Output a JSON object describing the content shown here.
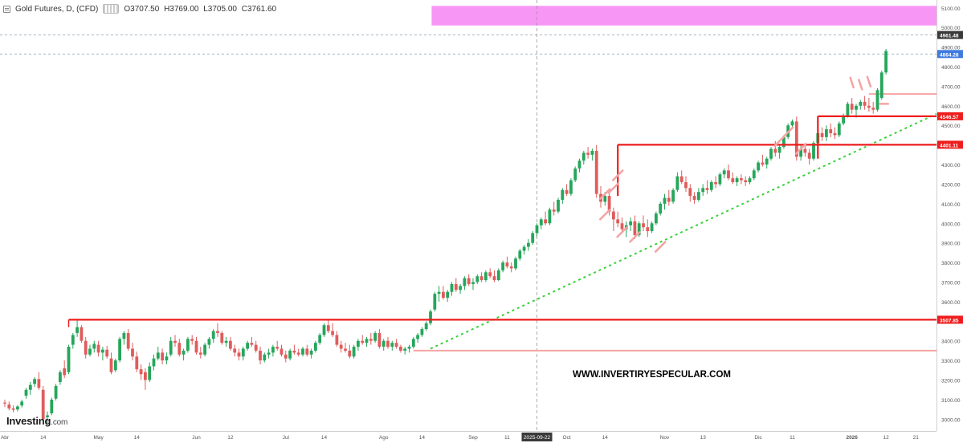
{
  "header": {
    "title": "Gold Futures, D, (CFD)",
    "open": "O3707.50",
    "high": "H3769.00",
    "low": "L3705.00",
    "close": "C3761.60"
  },
  "logo": {
    "main": "Investing",
    "suffix": ".com"
  },
  "watermark": "WWW.INVERTIRYESPECULAR.COM",
  "colors": {
    "up": "#26a65b",
    "down": "#e05c5c",
    "resistance": "#ee1c1c",
    "support_light": "#f7a3a3",
    "trendline": "#3ad13a",
    "zone": "#f896f6",
    "label_red": "#ee1c1c",
    "label_dark": "#3a3a3a",
    "label_blue": "#3f7ae0"
  },
  "chart_data": {
    "type": "candlestick",
    "symbol": "Gold Futures",
    "timeframe": "D",
    "y_tick_labels": [
      "3000.00",
      "3100.00",
      "3200.00",
      "3300.00",
      "3400.00",
      "3500.00",
      "3600.00",
      "3700.00",
      "3800.00",
      "3900.00",
      "4000.00",
      "4100.00",
      "4200.00",
      "4300.00",
      "4400.00",
      "4500.00",
      "4600.00",
      "4700.00",
      "4800.00",
      "4900.00",
      "5000.00",
      "5100.00"
    ],
    "ylim": [
      2940,
      5140
    ],
    "x_tick_labels": [
      {
        "label": "Abr",
        "i": 0
      },
      {
        "label": "14",
        "i": 9
      },
      {
        "label": "May",
        "i": 22
      },
      {
        "label": "14",
        "i": 31
      },
      {
        "label": "Jun",
        "i": 45
      },
      {
        "label": "12",
        "i": 53
      },
      {
        "label": "Jul",
        "i": 66
      },
      {
        "label": "14",
        "i": 75
      },
      {
        "label": "Ago",
        "i": 89
      },
      {
        "label": "14",
        "i": 98
      },
      {
        "label": "Sep",
        "i": 110
      },
      {
        "label": "11",
        "i": 118
      },
      {
        "label": "2025-09-22",
        "i": 125,
        "highlight": true
      },
      {
        "label": "Oct",
        "i": 132
      },
      {
        "label": "14",
        "i": 141
      },
      {
        "label": "Nov",
        "i": 155
      },
      {
        "label": "13",
        "i": 164
      },
      {
        "label": "Dic",
        "i": 177
      },
      {
        "label": "11",
        "i": 185
      },
      {
        "label": "2026",
        "i": 199,
        "bold": true
      },
      {
        "label": "12",
        "i": 207
      },
      {
        "label": "21",
        "i": 214
      }
    ],
    "price_labels": [
      {
        "value": 4961.48,
        "text": "4961.48",
        "style": "dark"
      },
      {
        "value": 4864.28,
        "text": "4864.28",
        "style": "blue"
      },
      {
        "value": 4546.57,
        "text": "4546.57",
        "style": "red"
      },
      {
        "value": 4401.11,
        "text": "4401.11",
        "style": "red"
      },
      {
        "value": 3507.85,
        "text": "3507.85",
        "style": "red"
      }
    ],
    "resistance_lines": [
      {
        "value": 3507.85,
        "from_i": 15,
        "to_i": 220
      },
      {
        "value": 4401.11,
        "from_i": 144,
        "to_i": 220
      },
      {
        "value": 4546.57,
        "from_i": 191,
        "to_i": 220
      }
    ],
    "support_lines": [
      {
        "value": 3350,
        "from_i": 96,
        "to_i": 220
      },
      {
        "value": 4660,
        "from_i": 203,
        "to_i": 220
      }
    ],
    "vertical_segments": [
      {
        "i": 144,
        "from": 4401.11,
        "to": 4140
      },
      {
        "i": 191,
        "from": 4546.57,
        "to": 4330
      }
    ],
    "trendline": {
      "from": {
        "i": 100,
        "v": 3360
      },
      "to": {
        "i": 220,
        "v": 4570
      }
    },
    "zone": {
      "from_i": 98,
      "to_i": 220,
      "low": 5010,
      "high": 5110
    },
    "dashed_levels": [
      4961.48,
      4864.28
    ],
    "arrows": [
      {
        "i": 141,
        "v": 4150,
        "dir": "up"
      },
      {
        "i": 143,
        "v": 4180,
        "dir": "up"
      },
      {
        "i": 144,
        "v": 4245,
        "dir": "up"
      },
      {
        "i": 141,
        "v": 4045,
        "dir": "up"
      },
      {
        "i": 145,
        "v": 3955,
        "dir": "up"
      },
      {
        "i": 148,
        "v": 3930,
        "dir": "up"
      },
      {
        "i": 154,
        "v": 3880,
        "dir": "up"
      },
      {
        "i": 182,
        "v": 4420,
        "dir": "up"
      },
      {
        "i": 184,
        "v": 4465,
        "dir": "up"
      },
      {
        "i": 187,
        "v": 4380,
        "dir": "up"
      },
      {
        "i": 199,
        "v": 4710,
        "dir": "down"
      },
      {
        "i": 201,
        "v": 4700,
        "dir": "down"
      },
      {
        "i": 203,
        "v": 4715,
        "dir": "down"
      },
      {
        "i": 206,
        "v": 4610,
        "dir": "left"
      }
    ],
    "candles": [
      [
        3085,
        3100,
        3062,
        3080
      ],
      [
        3075,
        3090,
        3045,
        3055
      ],
      [
        3055,
        3070,
        3035,
        3048
      ],
      [
        3050,
        3072,
        3040,
        3065
      ],
      [
        3070,
        3100,
        3060,
        3090
      ],
      [
        3120,
        3160,
        3105,
        3150
      ],
      [
        3150,
        3190,
        3125,
        3175
      ],
      [
        3180,
        3215,
        3165,
        3205
      ],
      [
        3205,
        3240,
        3150,
        3160
      ],
      [
        3150,
        3170,
        2990,
        3000
      ],
      [
        3010,
        3040,
        2980,
        3020
      ],
      [
        3030,
        3110,
        3020,
        3100
      ],
      [
        3105,
        3180,
        3095,
        3170
      ],
      [
        3190,
        3250,
        3175,
        3240
      ],
      [
        3260,
        3300,
        3210,
        3225
      ],
      [
        3240,
        3380,
        3230,
        3370
      ],
      [
        3380,
        3440,
        3360,
        3430
      ],
      [
        3440,
        3505,
        3420,
        3470
      ],
      [
        3470,
        3480,
        3390,
        3400
      ],
      [
        3400,
        3420,
        3310,
        3330
      ],
      [
        3330,
        3380,
        3320,
        3360
      ],
      [
        3360,
        3400,
        3340,
        3385
      ],
      [
        3380,
        3400,
        3320,
        3340
      ],
      [
        3340,
        3370,
        3300,
        3355
      ],
      [
        3355,
        3375,
        3310,
        3320
      ],
      [
        3310,
        3340,
        3230,
        3240
      ],
      [
        3250,
        3310,
        3240,
        3300
      ],
      [
        3300,
        3420,
        3290,
        3410
      ],
      [
        3410,
        3450,
        3380,
        3440
      ],
      [
        3440,
        3460,
        3350,
        3360
      ],
      [
        3360,
        3390,
        3300,
        3320
      ],
      [
        3320,
        3345,
        3240,
        3255
      ],
      [
        3255,
        3280,
        3200,
        3230
      ],
      [
        3240,
        3260,
        3150,
        3200
      ],
      [
        3200,
        3290,
        3190,
        3270
      ],
      [
        3270,
        3330,
        3250,
        3310
      ],
      [
        3310,
        3370,
        3300,
        3340
      ],
      [
        3340,
        3360,
        3280,
        3300
      ],
      [
        3300,
        3340,
        3280,
        3320
      ],
      [
        3330,
        3420,
        3320,
        3400
      ],
      [
        3400,
        3430,
        3370,
        3390
      ],
      [
        3390,
        3410,
        3320,
        3330
      ],
      [
        3330,
        3360,
        3300,
        3350
      ],
      [
        3350,
        3420,
        3340,
        3410
      ],
      [
        3410,
        3430,
        3380,
        3400
      ],
      [
        3400,
        3420,
        3330,
        3340
      ],
      [
        3340,
        3370,
        3310,
        3330
      ],
      [
        3330,
        3390,
        3320,
        3380
      ],
      [
        3380,
        3420,
        3360,
        3410
      ],
      [
        3410,
        3460,
        3390,
        3450
      ],
      [
        3450,
        3490,
        3420,
        3440
      ],
      [
        3440,
        3450,
        3380,
        3390
      ],
      [
        3390,
        3420,
        3370,
        3400
      ],
      [
        3400,
        3420,
        3350,
        3360
      ],
      [
        3360,
        3380,
        3320,
        3340
      ],
      [
        3340,
        3360,
        3300,
        3320
      ],
      [
        3320,
        3370,
        3300,
        3360
      ],
      [
        3360,
        3400,
        3350,
        3390
      ],
      [
        3390,
        3420,
        3370,
        3380
      ],
      [
        3380,
        3400,
        3340,
        3350
      ],
      [
        3350,
        3370,
        3280,
        3300
      ],
      [
        3300,
        3340,
        3290,
        3330
      ],
      [
        3330,
        3360,
        3310,
        3340
      ],
      [
        3340,
        3380,
        3320,
        3370
      ],
      [
        3370,
        3400,
        3350,
        3360
      ],
      [
        3360,
        3380,
        3320,
        3330
      ],
      [
        3330,
        3350,
        3290,
        3310
      ],
      [
        3310,
        3360,
        3300,
        3350
      ],
      [
        3350,
        3380,
        3330,
        3340
      ],
      [
        3340,
        3360,
        3320,
        3330
      ],
      [
        3330,
        3370,
        3320,
        3360
      ],
      [
        3360,
        3380,
        3320,
        3330
      ],
      [
        3330,
        3360,
        3310,
        3350
      ],
      [
        3350,
        3400,
        3340,
        3390
      ],
      [
        3390,
        3440,
        3380,
        3430
      ],
      [
        3430,
        3490,
        3420,
        3480
      ],
      [
        3480,
        3510,
        3440,
        3450
      ],
      [
        3450,
        3490,
        3420,
        3430
      ],
      [
        3430,
        3450,
        3370,
        3380
      ],
      [
        3380,
        3400,
        3340,
        3360
      ],
      [
        3360,
        3390,
        3340,
        3350
      ],
      [
        3350,
        3380,
        3310,
        3320
      ],
      [
        3320,
        3380,
        3310,
        3370
      ],
      [
        3370,
        3410,
        3350,
        3400
      ],
      [
        3400,
        3430,
        3380,
        3390
      ],
      [
        3390,
        3420,
        3370,
        3410
      ],
      [
        3410,
        3440,
        3380,
        3400
      ],
      [
        3400,
        3450,
        3390,
        3440
      ],
      [
        3440,
        3460,
        3360,
        3370
      ],
      [
        3370,
        3410,
        3350,
        3400
      ],
      [
        3400,
        3420,
        3360,
        3370
      ],
      [
        3370,
        3400,
        3350,
        3390
      ],
      [
        3390,
        3410,
        3360,
        3370
      ],
      [
        3370,
        3380,
        3340,
        3350
      ],
      [
        3350,
        3370,
        3330,
        3360
      ],
      [
        3360,
        3380,
        3340,
        3370
      ],
      [
        3370,
        3420,
        3360,
        3410
      ],
      [
        3410,
        3440,
        3390,
        3430
      ],
      [
        3430,
        3470,
        3420,
        3460
      ],
      [
        3460,
        3500,
        3450,
        3490
      ],
      [
        3490,
        3560,
        3480,
        3550
      ],
      [
        3560,
        3650,
        3550,
        3640
      ],
      [
        3640,
        3680,
        3600,
        3650
      ],
      [
        3650,
        3680,
        3610,
        3620
      ],
      [
        3620,
        3660,
        3600,
        3650
      ],
      [
        3650,
        3700,
        3630,
        3690
      ],
      [
        3690,
        3720,
        3650,
        3660
      ],
      [
        3660,
        3690,
        3640,
        3680
      ],
      [
        3680,
        3730,
        3660,
        3720
      ],
      [
        3720,
        3740,
        3680,
        3690
      ],
      [
        3690,
        3720,
        3660,
        3700
      ],
      [
        3700,
        3740,
        3690,
        3730
      ],
      [
        3730,
        3750,
        3700,
        3710
      ],
      [
        3710,
        3760,
        3700,
        3750
      ],
      [
        3750,
        3770,
        3720,
        3730
      ],
      [
        3730,
        3760,
        3700,
        3710
      ],
      [
        3710,
        3770,
        3705,
        3760
      ],
      [
        3760,
        3810,
        3750,
        3800
      ],
      [
        3800,
        3830,
        3770,
        3780
      ],
      [
        3780,
        3800,
        3750,
        3770
      ],
      [
        3770,
        3830,
        3760,
        3820
      ],
      [
        3820,
        3870,
        3810,
        3860
      ],
      [
        3860,
        3890,
        3840,
        3880
      ],
      [
        3880,
        3920,
        3860,
        3900
      ],
      [
        3900,
        3960,
        3890,
        3950
      ],
      [
        3950,
        4000,
        3930,
        3990
      ],
      [
        3990,
        4030,
        3970,
        4020
      ],
      [
        4020,
        4060,
        3990,
        4000
      ],
      [
        4000,
        4080,
        3990,
        4070
      ],
      [
        4070,
        4110,
        4040,
        4060
      ],
      [
        4060,
        4130,
        4050,
        4120
      ],
      [
        4120,
        4180,
        4100,
        4170
      ],
      [
        4170,
        4200,
        4140,
        4150
      ],
      [
        4150,
        4230,
        4140,
        4220
      ],
      [
        4220,
        4290,
        4210,
        4280
      ],
      [
        4280,
        4330,
        4260,
        4320
      ],
      [
        4320,
        4370,
        4300,
        4360
      ],
      [
        4360,
        4390,
        4330,
        4350
      ],
      [
        4350,
        4381,
        4320,
        4370
      ],
      [
        4370,
        4400,
        4130,
        4150
      ],
      [
        4150,
        4190,
        4080,
        4110
      ],
      [
        4110,
        4160,
        4090,
        4140
      ],
      [
        4140,
        4170,
        4040,
        4060
      ],
      [
        4060,
        4080,
        3960,
        4020
      ],
      [
        4020,
        4060,
        3980,
        4000
      ],
      [
        4000,
        4030,
        3950,
        3970
      ],
      [
        3970,
        4010,
        3930,
        3990
      ],
      [
        3990,
        4030,
        3960,
        4010
      ],
      [
        4010,
        4040,
        3920,
        3940
      ],
      [
        3940,
        4010,
        3930,
        4000
      ],
      [
        4000,
        4040,
        3960,
        3980
      ],
      [
        3980,
        4020,
        3930,
        3960
      ],
      [
        3960,
        4010,
        3950,
        4000
      ],
      [
        4000,
        4060,
        3990,
        4050
      ],
      [
        4050,
        4110,
        4040,
        4100
      ],
      [
        4100,
        4150,
        4070,
        4130
      ],
      [
        4130,
        4170,
        4090,
        4110
      ],
      [
        4110,
        4180,
        4100,
        4170
      ],
      [
        4170,
        4260,
        4160,
        4240
      ],
      [
        4240,
        4270,
        4200,
        4210
      ],
      [
        4210,
        4240,
        4160,
        4180
      ],
      [
        4180,
        4200,
        4110,
        4140
      ],
      [
        4140,
        4160,
        4100,
        4120
      ],
      [
        4120,
        4180,
        4110,
        4160
      ],
      [
        4160,
        4200,
        4140,
        4180
      ],
      [
        4180,
        4220,
        4150,
        4170
      ],
      [
        4170,
        4220,
        4160,
        4210
      ],
      [
        4210,
        4240,
        4180,
        4200
      ],
      [
        4200,
        4260,
        4190,
        4250
      ],
      [
        4250,
        4280,
        4230,
        4270
      ],
      [
        4270,
        4300,
        4220,
        4230
      ],
      [
        4230,
        4260,
        4200,
        4210
      ],
      [
        4210,
        4240,
        4190,
        4230
      ],
      [
        4230,
        4250,
        4200,
        4220
      ],
      [
        4220,
        4240,
        4190,
        4210
      ],
      [
        4210,
        4240,
        4200,
        4230
      ],
      [
        4230,
        4280,
        4220,
        4270
      ],
      [
        4270,
        4320,
        4260,
        4310
      ],
      [
        4310,
        4350,
        4290,
        4300
      ],
      [
        4300,
        4340,
        4280,
        4330
      ],
      [
        4330,
        4390,
        4320,
        4380
      ],
      [
        4380,
        4420,
        4340,
        4360
      ],
      [
        4360,
        4400,
        4330,
        4390
      ],
      [
        4390,
        4450,
        4380,
        4440
      ],
      [
        4440,
        4510,
        4430,
        4500
      ],
      [
        4500,
        4530,
        4480,
        4520
      ],
      [
        4520,
        4545,
        4320,
        4340
      ],
      [
        4340,
        4400,
        4320,
        4380
      ],
      [
        4380,
        4410,
        4340,
        4360
      ],
      [
        4360,
        4380,
        4300,
        4330
      ],
      [
        4330,
        4420,
        4320,
        4410
      ],
      [
        4410,
        4470,
        4390,
        4460
      ],
      [
        4460,
        4490,
        4420,
        4440
      ],
      [
        4440,
        4500,
        4420,
        4480
      ],
      [
        4480,
        4510,
        4440,
        4460
      ],
      [
        4460,
        4490,
        4430,
        4450
      ],
      [
        4450,
        4520,
        4440,
        4510
      ],
      [
        4510,
        4560,
        4500,
        4550
      ],
      [
        4550,
        4620,
        4540,
        4610
      ],
      [
        4610,
        4640,
        4560,
        4580
      ],
      [
        4580,
        4610,
        4540,
        4600
      ],
      [
        4600,
        4630,
        4580,
        4620
      ],
      [
        4620,
        4650,
        4580,
        4600
      ],
      [
        4600,
        4640,
        4570,
        4590
      ],
      [
        4590,
        4620,
        4560,
        4580
      ],
      [
        4580,
        4690,
        4570,
        4680
      ],
      [
        4640,
        4780,
        4630,
        4770
      ],
      [
        4770,
        4890,
        4760,
        4880
      ]
    ]
  }
}
